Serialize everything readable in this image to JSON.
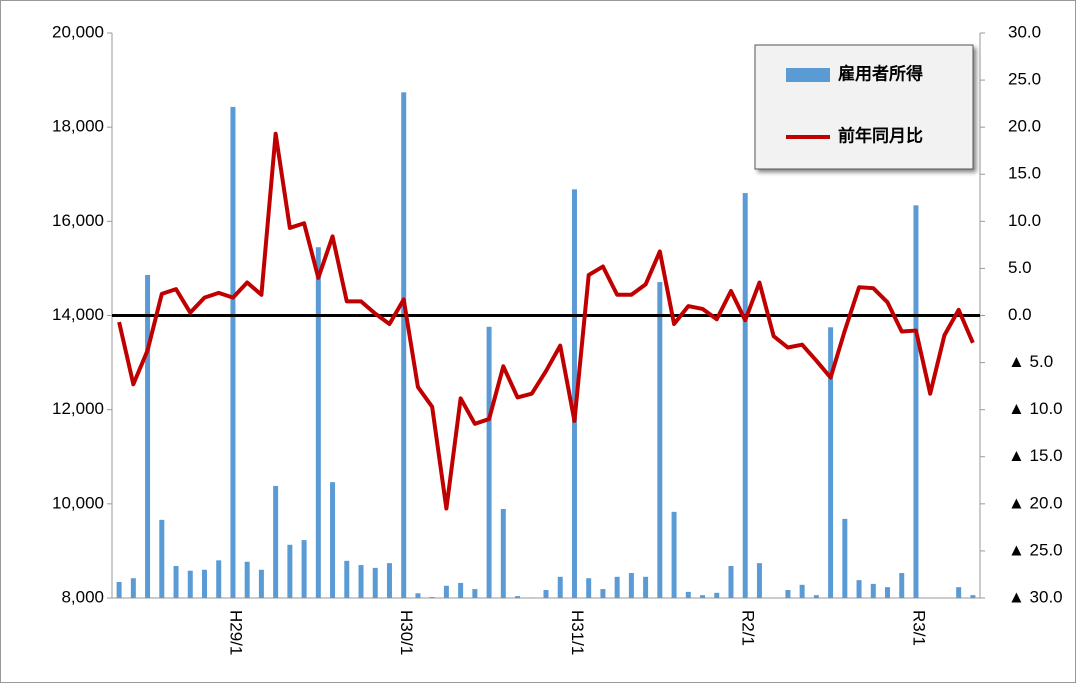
{
  "chart_data": {
    "type": "bar",
    "categories": [
      null,
      null,
      null,
      null,
      null,
      null,
      null,
      null,
      "H29/1",
      null,
      null,
      null,
      null,
      null,
      null,
      null,
      null,
      null,
      null,
      null,
      "H30/1",
      null,
      null,
      null,
      null,
      null,
      null,
      null,
      null,
      null,
      null,
      null,
      "H31/1",
      null,
      null,
      null,
      null,
      null,
      null,
      null,
      null,
      null,
      null,
      null,
      "R2/1",
      null,
      null,
      null,
      null,
      null,
      null,
      null,
      null,
      null,
      null,
      null,
      "R3/1",
      null,
      null,
      null,
      null
    ],
    "series": [
      {
        "name": "雇用者所得",
        "type": "bar",
        "color": "#5b9bd5",
        "values": [
          8340,
          8420,
          14860,
          9660,
          8680,
          8580,
          8600,
          8800,
          18430,
          8770,
          8600,
          10380,
          9130,
          9230,
          15450,
          10460,
          8790,
          8700,
          8640,
          8740,
          18740,
          8100,
          8020,
          8260,
          8320,
          8190,
          13760,
          9890,
          8040,
          8010,
          8170,
          8450,
          16680,
          8420,
          8190,
          8450,
          8530,
          8450,
          14710,
          9830,
          8130,
          8060,
          8110,
          8680,
          16600,
          8740,
          8000,
          8170,
          8280,
          8060,
          13750,
          9680,
          8380,
          8300,
          8230,
          8530,
          16340,
          8000,
          8000,
          8230,
          8060
        ]
      },
      {
        "name": "前年同月比",
        "type": "line",
        "axis": "y2",
        "color": "#c00000",
        "values": [
          -0.7,
          -7.3,
          -3.7,
          2.3,
          2.8,
          0.3,
          1.9,
          2.4,
          1.9,
          3.5,
          2.2,
          19.3,
          9.3,
          9.8,
          4.0,
          8.4,
          1.5,
          1.5,
          0.2,
          -0.9,
          1.7,
          -7.6,
          -9.7,
          -20.5,
          -8.8,
          -11.5,
          -11.0,
          -5.4,
          -8.7,
          -8.3,
          -5.9,
          -3.2,
          -11.2,
          4.3,
          5.2,
          2.2,
          2.2,
          3.3,
          6.8,
          -0.9,
          1.0,
          0.7,
          -0.4,
          2.6,
          -0.5,
          3.5,
          -2.2,
          -3.4,
          -3.1,
          -4.8,
          -6.6,
          -1.6,
          3.0,
          2.9,
          1.4,
          -1.7,
          -1.6,
          -8.3,
          -2.1,
          0.6,
          -2.9
        ]
      }
    ],
    "ylim": [
      8000,
      20000
    ],
    "yticks": [
      {
        "value": 8000,
        "label": "8,000"
      },
      {
        "value": 10000,
        "label": "10,000"
      },
      {
        "value": 12000,
        "label": "12,000"
      },
      {
        "value": 14000,
        "label": "14,000"
      },
      {
        "value": 16000,
        "label": "16,000"
      },
      {
        "value": 18000,
        "label": "18,000"
      },
      {
        "value": 20000,
        "label": "20,000"
      }
    ],
    "y2lim": [
      -30,
      30
    ],
    "y2ticks": [
      {
        "value": -30,
        "label": "▲ 30.0"
      },
      {
        "value": -25,
        "label": "▲ 25.0"
      },
      {
        "value": -20,
        "label": "▲ 20.0"
      },
      {
        "value": -15,
        "label": "▲ 15.0"
      },
      {
        "value": -10,
        "label": "▲ 10.0"
      },
      {
        "value": -5,
        "label": "▲ 5.0"
      },
      {
        "value": 0,
        "label": "0.0"
      },
      {
        "value": 5,
        "label": "5.0"
      },
      {
        "value": 10,
        "label": "10.0"
      },
      {
        "value": 15,
        "label": "15.0"
      },
      {
        "value": 20,
        "label": "20.0"
      },
      {
        "value": 25,
        "label": "25.0"
      },
      {
        "value": 30,
        "label": "30.0"
      }
    ],
    "zero_line": true,
    "legend": "top-right"
  }
}
